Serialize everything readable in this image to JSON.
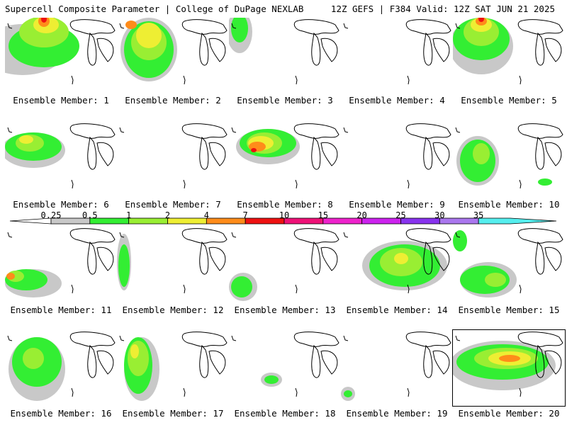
{
  "header": {
    "left": "Supercell Composite Parameter | College of DuPage NEXLAB",
    "right": "12Z GEFS | F384 Valid: 12Z SAT JUN 21 2025"
  },
  "colorbar": {
    "labels": [
      "0.25",
      "0.5",
      "1",
      "2",
      "4",
      "7",
      "10",
      "15",
      "20",
      "25",
      "30",
      "35"
    ],
    "colors": [
      "#c8c8c8",
      "#33ee33",
      "#99ee33",
      "#eeee33",
      "#ff8c1a",
      "#ee1111",
      "#ee1177",
      "#ee22cc",
      "#cc22ee",
      "#8833ee",
      "#aa77ee",
      "#55eeee"
    ]
  },
  "members": [
    {
      "label": "Ensemble Member: 1",
      "spots": [
        [
          "#c8c8c8",
          25,
          45,
          60,
          36
        ],
        [
          "#33ee33",
          55,
          40,
          50,
          30
        ],
        [
          "#99ee33",
          55,
          20,
          35,
          22
        ],
        [
          "#eeee33",
          58,
          10,
          18,
          12
        ],
        [
          "#ff8c1a",
          55,
          5,
          8,
          8
        ],
        [
          "#ee1111",
          55,
          2,
          4,
          5
        ]
      ]
    },
    {
      "label": "Ensemble Member: 2",
      "spots": [
        [
          "#c8c8c8",
          45,
          45,
          40,
          45
        ],
        [
          "#33ee33",
          45,
          45,
          35,
          40
        ],
        [
          "#99ee33",
          45,
          35,
          25,
          25
        ],
        [
          "#eeee33",
          45,
          25,
          18,
          18
        ],
        [
          "#ff8c1a",
          20,
          10,
          8,
          6
        ]
      ]
    },
    {
      "label": "Ensemble Member: 3",
      "spots": [
        [
          "#c8c8c8",
          15,
          20,
          18,
          30
        ],
        [
          "#33ee33",
          15,
          15,
          12,
          20
        ]
      ]
    },
    {
      "label": "Ensemble Member: 4",
      "spots": []
    },
    {
      "label": "Ensemble Member: 5",
      "spots": [
        [
          "#c8c8c8",
          40,
          40,
          45,
          40
        ],
        [
          "#33ee33",
          40,
          30,
          40,
          30
        ],
        [
          "#99ee33",
          40,
          20,
          25,
          20
        ],
        [
          "#eeee33",
          40,
          10,
          15,
          10
        ],
        [
          "#ff8c1a",
          40,
          5,
          8,
          6
        ],
        [
          "#ee1111",
          40,
          2,
          4,
          4
        ]
      ]
    },
    {
      "label": "Ensemble Member: 6",
      "spots": [
        [
          "#c8c8c8",
          40,
          40,
          45,
          25
        ],
        [
          "#33ee33",
          40,
          35,
          40,
          20
        ],
        [
          "#99ee33",
          35,
          30,
          20,
          12
        ],
        [
          "#eeee33",
          30,
          25,
          10,
          6
        ]
      ]
    },
    {
      "label": "Ensemble Member: 7",
      "spots": []
    },
    {
      "label": "Ensemble Member: 8",
      "spots": [
        [
          "#c8c8c8",
          55,
          35,
          45,
          25
        ],
        [
          "#33ee33",
          55,
          30,
          40,
          20
        ],
        [
          "#99ee33",
          50,
          30,
          25,
          15
        ],
        [
          "#eeee33",
          45,
          30,
          18,
          10
        ],
        [
          "#ff8c1a",
          40,
          35,
          12,
          7
        ],
        [
          "#ee1111",
          35,
          40,
          4,
          3
        ]
      ]
    },
    {
      "label": "Ensemble Member: 9",
      "spots": []
    },
    {
      "label": "Ensemble Member: 10",
      "spots": [
        [
          "#c8c8c8",
          35,
          55,
          30,
          35
        ],
        [
          "#33ee33",
          35,
          55,
          25,
          30
        ],
        [
          "#99ee33",
          40,
          45,
          12,
          15
        ],
        [
          "#33ee33",
          130,
          85,
          10,
          5
        ]
      ]
    },
    {
      "label": "Ensemble Member: 11",
      "spots": [
        [
          "#c8c8c8",
          40,
          80,
          40,
          20
        ],
        [
          "#33ee33",
          30,
          75,
          30,
          15
        ],
        [
          "#99ee33",
          15,
          70,
          12,
          8
        ],
        [
          "#ff8c1a",
          8,
          70,
          6,
          5
        ]
      ]
    },
    {
      "label": "Ensemble Member: 12",
      "spots": [
        [
          "#c8c8c8",
          10,
          50,
          10,
          40
        ],
        [
          "#33ee33",
          10,
          55,
          8,
          30
        ]
      ]
    },
    {
      "label": "Ensemble Member: 13",
      "spots": [
        [
          "#c8c8c8",
          20,
          85,
          20,
          20
        ],
        [
          "#33ee33",
          18,
          85,
          15,
          15
        ]
      ]
    },
    {
      "label": "Ensemble Member: 14",
      "spots": [
        [
          "#c8c8c8",
          90,
          55,
          60,
          35
        ],
        [
          "#33ee33",
          90,
          55,
          50,
          30
        ],
        [
          "#99ee33",
          85,
          50,
          30,
          20
        ],
        [
          "#eeee33",
          85,
          45,
          10,
          8
        ]
      ]
    },
    {
      "label": "Ensemble Member: 15",
      "spots": [
        [
          "#c8c8c8",
          50,
          75,
          40,
          25
        ],
        [
          "#33ee33",
          45,
          75,
          35,
          20
        ],
        [
          "#99ee33",
          60,
          75,
          15,
          10
        ],
        [
          "#33ee33",
          10,
          20,
          10,
          15
        ]
      ]
    },
    {
      "label": "Ensemble Member: 16",
      "spots": [
        [
          "#c8c8c8",
          45,
          55,
          40,
          45
        ],
        [
          "#33ee33",
          45,
          45,
          35,
          35
        ],
        [
          "#99ee33",
          40,
          40,
          15,
          15
        ]
      ]
    },
    {
      "label": "Ensemble Member: 17",
      "spots": [
        [
          "#c8c8c8",
          35,
          55,
          25,
          45
        ],
        [
          "#33ee33",
          30,
          50,
          20,
          40
        ],
        [
          "#99ee33",
          30,
          40,
          15,
          25
        ],
        [
          "#eeee33",
          25,
          30,
          6,
          10
        ]
      ]
    },
    {
      "label": "Ensemble Member: 18",
      "spots": [
        [
          "#c8c8c8",
          60,
          70,
          15,
          10
        ],
        [
          "#33ee33",
          60,
          70,
          10,
          6
        ]
      ]
    },
    {
      "label": "Ensemble Member: 19",
      "spots": [
        [
          "#c8c8c8",
          10,
          90,
          10,
          10
        ],
        [
          "#33ee33",
          10,
          90,
          6,
          5
        ]
      ]
    },
    {
      "label": "Ensemble Member: 20",
      "spots": [
        [
          "#c8c8c8",
          70,
          50,
          75,
          35
        ],
        [
          "#33ee33",
          70,
          45,
          65,
          25
        ],
        [
          "#99ee33",
          75,
          40,
          45,
          15
        ],
        [
          "#eeee33",
          80,
          40,
          30,
          10
        ],
        [
          "#ff8c1a",
          80,
          40,
          15,
          5
        ]
      ]
    }
  ]
}
